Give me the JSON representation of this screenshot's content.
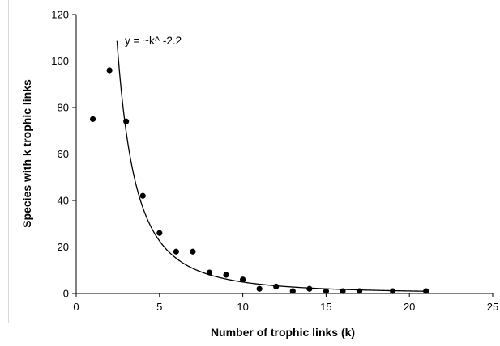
{
  "chart_data": {
    "type": "scatter",
    "xlabel": "Number of trophic links (k)",
    "ylabel": "Species with k trophic links",
    "xlim": [
      0,
      25
    ],
    "ylim": [
      0,
      120
    ],
    "xticks": [
      0,
      5,
      10,
      15,
      20,
      25
    ],
    "yticks": [
      0,
      20,
      40,
      60,
      80,
      100,
      120
    ],
    "grid": false,
    "points": [
      {
        "x": 1,
        "y": 75
      },
      {
        "x": 2,
        "y": 96
      },
      {
        "x": 3,
        "y": 74
      },
      {
        "x": 4,
        "y": 42
      },
      {
        "x": 5,
        "y": 26
      },
      {
        "x": 6,
        "y": 18
      },
      {
        "x": 7,
        "y": 18
      },
      {
        "x": 8,
        "y": 9
      },
      {
        "x": 9,
        "y": 8
      },
      {
        "x": 10,
        "y": 6
      },
      {
        "x": 11,
        "y": 2
      },
      {
        "x": 12,
        "y": 3
      },
      {
        "x": 13,
        "y": 1
      },
      {
        "x": 14,
        "y": 2
      },
      {
        "x": 15,
        "y": 1
      },
      {
        "x": 16,
        "y": 1
      },
      {
        "x": 17,
        "y": 1
      },
      {
        "x": 19,
        "y": 1
      },
      {
        "x": 21,
        "y": 1
      }
    ],
    "fit": {
      "annotation": "y = ~k^ -2.2",
      "exponent": -2.2,
      "coefficient": 780,
      "x_start": 2.45,
      "x_end": 21
    }
  }
}
